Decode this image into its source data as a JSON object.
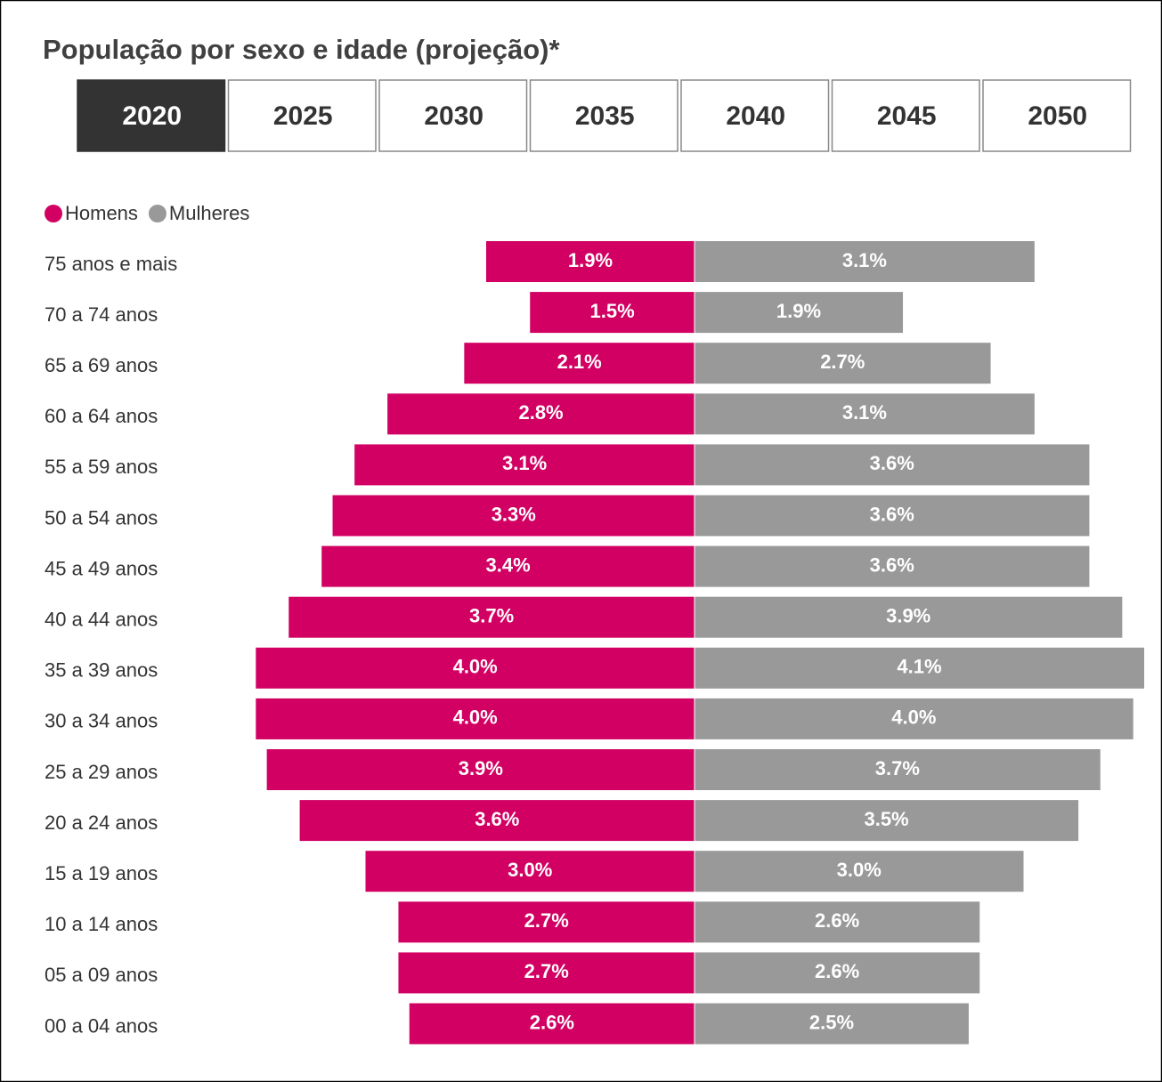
{
  "chart_data": {
    "type": "pyramid",
    "title": "População por sexo e idade (projeção)*",
    "tabs": [
      {
        "label": "2020",
        "selected": true
      },
      {
        "label": "2025",
        "selected": false
      },
      {
        "label": "2030",
        "selected": false
      },
      {
        "label": "2035",
        "selected": false
      },
      {
        "label": "2040",
        "selected": false
      },
      {
        "label": "2045",
        "selected": false
      },
      {
        "label": "2050",
        "selected": false
      }
    ],
    "categories": [
      "75 anos e mais",
      "70 a 74 anos",
      "65 a 69 anos",
      "60 a 64 anos",
      "55 a 59 anos",
      "50 a 54 anos",
      "45 a 49 anos",
      "40 a 44 anos",
      "35 a 39 anos",
      "30 a 34 anos",
      "25 a 29 anos",
      "20 a 24 anos",
      "15 a 19 anos",
      "10 a 14 anos",
      "05 a 09 anos",
      "00 a 04 anos"
    ],
    "series": [
      {
        "name": "Homens",
        "color": "#d10062",
        "values": [
          1.9,
          1.5,
          2.1,
          2.8,
          3.1,
          3.3,
          3.4,
          3.7,
          4.0,
          4.0,
          3.9,
          3.6,
          3.0,
          2.7,
          2.7,
          2.6
        ],
        "value_labels": [
          "1.9%",
          "1.5%",
          "2.1%",
          "2.8%",
          "3.1%",
          "3.3%",
          "3.4%",
          "3.7%",
          "4.0%",
          "4.0%",
          "3.9%",
          "3.6%",
          "3.0%",
          "2.7%",
          "2.7%",
          "2.6%"
        ]
      },
      {
        "name": "Mulheres",
        "color": "#999999",
        "values": [
          3.1,
          1.9,
          2.7,
          3.1,
          3.6,
          3.6,
          3.6,
          3.9,
          4.1,
          4.0,
          3.7,
          3.5,
          3.0,
          2.6,
          2.6,
          2.5
        ],
        "value_labels": [
          "3.1%",
          "1.9%",
          "2.7%",
          "3.1%",
          "3.6%",
          "3.6%",
          "3.6%",
          "3.9%",
          "4.1%",
          "4.0%",
          "3.7%",
          "3.5%",
          "3.0%",
          "2.6%",
          "2.6%",
          "2.5%"
        ]
      }
    ]
  }
}
